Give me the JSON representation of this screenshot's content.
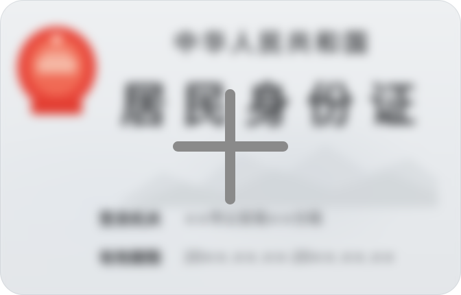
{
  "id_card": {
    "country_line": "中华人民共和国",
    "title": "居民身份证",
    "fields": [
      {
        "label": "签发机关",
        "value": "××市公安局××分局"
      },
      {
        "label": "有效期限",
        "value": "20××.××.××-20××.××.××"
      }
    ]
  },
  "upload": {
    "action_icon": "plus-icon"
  },
  "colors": {
    "emblem_red": "#e8463a",
    "plus_gray": "#8a8a8a",
    "card_bg": "#e9ecef"
  }
}
